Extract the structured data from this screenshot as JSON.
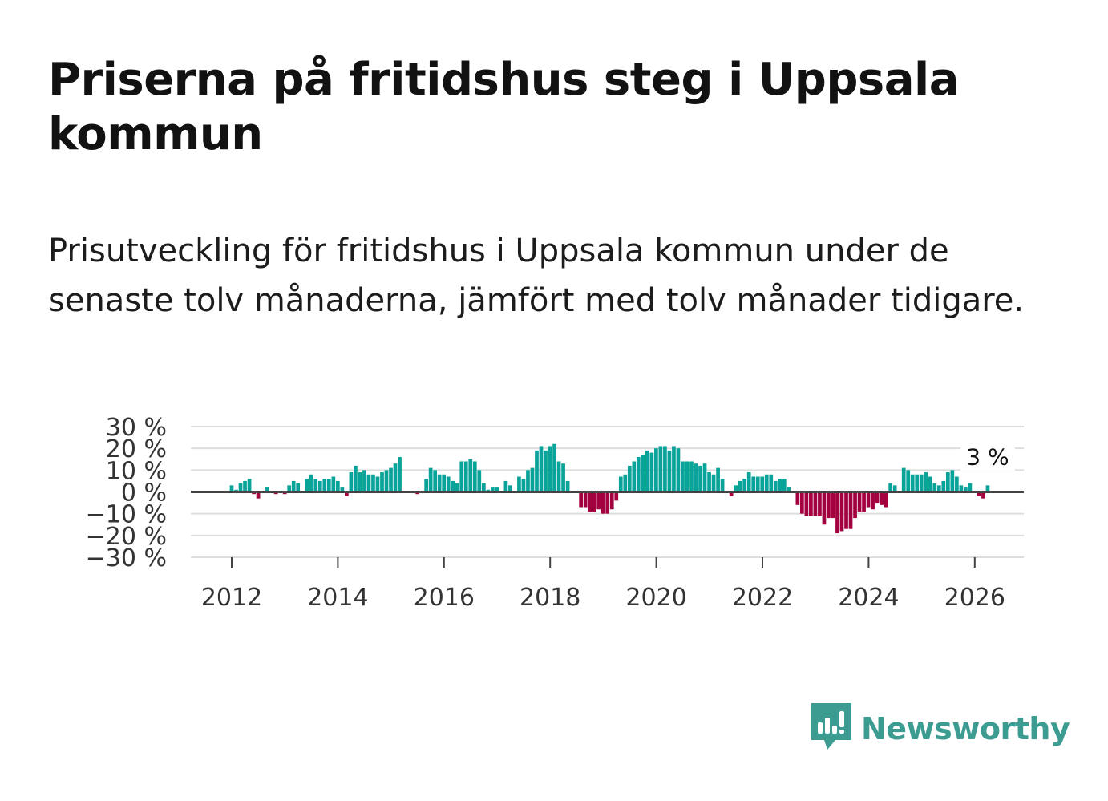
{
  "header": {
    "title": "Priserna på fritidshus steg i Uppsala kommun",
    "subtitle": "Prisutveckling för fritidshus i Uppsala kommun under de senaste tolv månaderna, jämfört med tolv månader tidigare."
  },
  "chart_data": {
    "type": "bar",
    "title": "Priserna på fritidshus steg i Uppsala kommun",
    "xlabel": "",
    "ylabel": "",
    "ylim": [
      -30,
      30
    ],
    "y_ticks": [
      "30 %",
      "20 %",
      "10 %",
      "0 %",
      "−10 %",
      "−20 %",
      "−30 %"
    ],
    "y_tick_values": [
      30,
      20,
      10,
      0,
      -10,
      -20,
      -30
    ],
    "x_ticks": [
      "2012",
      "2014",
      "2016",
      "2018",
      "2020",
      "2022",
      "2024",
      "2026"
    ],
    "x_tick_values": [
      2012,
      2014,
      2016,
      2018,
      2020,
      2022,
      2024,
      2026
    ],
    "x_start": 2012,
    "x_step": 0.0833,
    "annotation": "3 %",
    "colors": {
      "positive": "#0aa39a",
      "negative": "#a3003f",
      "grid": "#dddddd",
      "axis": "#444444"
    },
    "values": [
      3,
      1,
      4,
      5,
      6,
      -1,
      -3,
      0,
      2,
      0,
      -1,
      0,
      -1,
      3,
      5,
      4,
      0,
      6,
      8,
      6,
      5,
      6,
      6,
      7,
      5,
      2,
      -2,
      9,
      12,
      9,
      10,
      8,
      8,
      7,
      9,
      10,
      11,
      13,
      16,
      0,
      0,
      0,
      -1,
      0,
      6,
      11,
      10,
      8,
      8,
      7,
      5,
      4,
      14,
      14,
      15,
      14,
      10,
      4,
      1,
      2,
      2,
      0,
      5,
      3,
      0,
      7,
      6,
      10,
      11,
      19,
      21,
      19,
      21,
      22,
      14,
      13,
      5,
      0,
      0,
      -7,
      -7,
      -9,
      -9,
      -8,
      -10,
      -10,
      -8,
      -4,
      7,
      8,
      12,
      14,
      16,
      17,
      19,
      18,
      20,
      21,
      21,
      19,
      21,
      20,
      14,
      14,
      14,
      13,
      12,
      13,
      9,
      8,
      11,
      6,
      0,
      -2,
      3,
      5,
      6,
      9,
      7,
      7,
      7,
      8,
      8,
      5,
      6,
      6,
      2,
      0,
      -6,
      -10,
      -11,
      -11,
      -11,
      -11,
      -15,
      -12,
      -12,
      -19,
      -18,
      -17,
      -17,
      -12,
      -9,
      -9,
      -7,
      -8,
      -5,
      -6,
      -7,
      4,
      3,
      0,
      11,
      10,
      8,
      8,
      8,
      9,
      7,
      4,
      3,
      5,
      9,
      10,
      7,
      3,
      2,
      4,
      0,
      -2,
      -3,
      3
    ]
  },
  "footer": {
    "brand": "Newsworthy",
    "logo_icon": "newsworthy-logo-icon"
  }
}
